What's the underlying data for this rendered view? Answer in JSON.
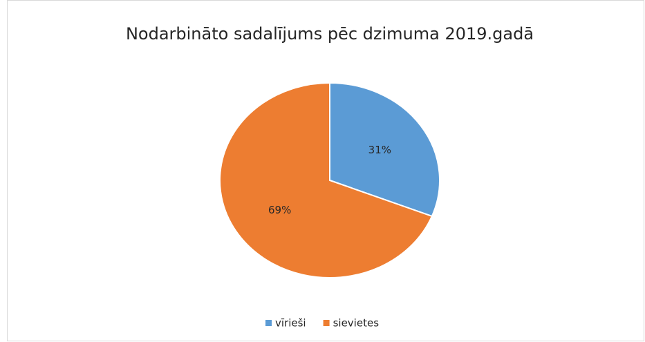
{
  "chart_data": {
    "type": "pie",
    "title": "Nodarbināto sadalījums pēc dzimuma 2019.gadā",
    "categories": [
      "vīrieši",
      "sievietes"
    ],
    "values": [
      31,
      69
    ],
    "value_labels": [
      "31%",
      "69%"
    ],
    "colors": [
      "#5b9bd5",
      "#ed7d31"
    ],
    "legend": "bottom"
  }
}
